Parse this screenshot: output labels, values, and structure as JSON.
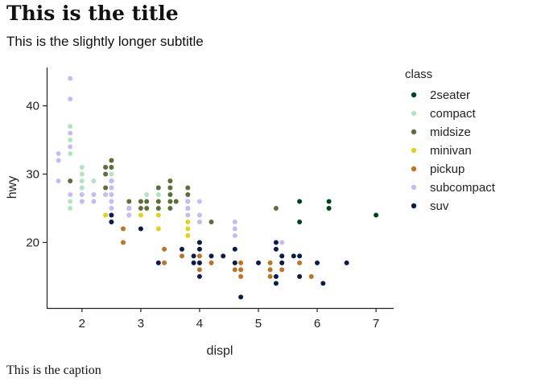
{
  "chart_data": {
    "type": "scatter",
    "title": "This is the title",
    "subtitle": "This is the slightly longer subtitle",
    "caption": "This is the caption",
    "xlabel": "displ",
    "ylabel": "hwy",
    "xlim": [
      1.4,
      7.3
    ],
    "ylim": [
      10.4,
      45.6
    ],
    "xticks": [
      2,
      3,
      4,
      5,
      6,
      7
    ],
    "yticks": [
      20,
      30,
      40
    ],
    "grid": false,
    "legend_title": "class",
    "legend_position": "right",
    "series": [
      {
        "name": "2seater",
        "color": "#00441b",
        "points": [
          [
            5.7,
            26
          ],
          [
            5.7,
            23
          ],
          [
            6.2,
            26
          ],
          [
            6.2,
            25
          ],
          [
            7.0,
            24
          ]
        ]
      },
      {
        "name": "compact",
        "color": "#b2e4c4",
        "points": [
          [
            1.8,
            37
          ],
          [
            1.8,
            35
          ],
          [
            1.8,
            33
          ],
          [
            1.8,
            29
          ],
          [
            1.8,
            26
          ],
          [
            1.8,
            25
          ],
          [
            2.0,
            31
          ],
          [
            2.0,
            30
          ],
          [
            2.0,
            29
          ],
          [
            2.0,
            28
          ],
          [
            2.0,
            26
          ],
          [
            2.2,
            29
          ],
          [
            2.2,
            27
          ],
          [
            2.2,
            26
          ],
          [
            2.4,
            31
          ],
          [
            2.4,
            30
          ],
          [
            2.4,
            27
          ],
          [
            2.5,
            30
          ],
          [
            2.5,
            28
          ],
          [
            2.5,
            27
          ],
          [
            2.5,
            26
          ],
          [
            2.5,
            25
          ],
          [
            2.8,
            26
          ],
          [
            2.8,
            25
          ],
          [
            2.8,
            24
          ],
          [
            3.0,
            26
          ],
          [
            3.1,
            27
          ],
          [
            3.3,
            27
          ]
        ]
      },
      {
        "name": "midsize",
        "color": "#5e6e3a",
        "points": [
          [
            1.8,
            29
          ],
          [
            2.4,
            31
          ],
          [
            2.4,
            30
          ],
          [
            2.4,
            28
          ],
          [
            2.5,
            32
          ],
          [
            2.5,
            31
          ],
          [
            2.5,
            29
          ],
          [
            2.8,
            26
          ],
          [
            2.8,
            25
          ],
          [
            3.0,
            26
          ],
          [
            3.0,
            25
          ],
          [
            3.1,
            26
          ],
          [
            3.1,
            25
          ],
          [
            3.3,
            28
          ],
          [
            3.3,
            26
          ],
          [
            3.3,
            25
          ],
          [
            3.5,
            29
          ],
          [
            3.5,
            28
          ],
          [
            3.5,
            27
          ],
          [
            3.5,
            26
          ],
          [
            3.5,
            25
          ],
          [
            3.6,
            26
          ],
          [
            3.8,
            28
          ],
          [
            3.8,
            27
          ],
          [
            3.8,
            26
          ],
          [
            3.8,
            25
          ],
          [
            4.2,
            23
          ],
          [
            5.3,
            25
          ]
        ]
      },
      {
        "name": "minivan",
        "color": "#e0d21e",
        "points": [
          [
            2.4,
            24
          ],
          [
            3.0,
            24
          ],
          [
            3.3,
            24
          ],
          [
            3.3,
            22
          ],
          [
            3.8,
            23
          ],
          [
            3.8,
            22
          ],
          [
            3.8,
            21
          ],
          [
            4.0,
            23
          ]
        ]
      },
      {
        "name": "pickup",
        "color": "#bd7424",
        "points": [
          [
            2.7,
            22
          ],
          [
            2.7,
            20
          ],
          [
            3.4,
            19
          ],
          [
            3.4,
            17
          ],
          [
            3.7,
            18
          ],
          [
            4.0,
            20
          ],
          [
            4.0,
            18
          ],
          [
            4.0,
            17
          ],
          [
            4.0,
            16
          ],
          [
            4.2,
            17
          ],
          [
            4.6,
            17
          ],
          [
            4.6,
            16
          ],
          [
            4.7,
            17
          ],
          [
            4.7,
            16
          ],
          [
            4.7,
            15
          ],
          [
            5.2,
            17
          ],
          [
            5.2,
            16
          ],
          [
            5.2,
            15
          ],
          [
            5.4,
            18
          ],
          [
            5.4,
            17
          ],
          [
            5.4,
            16
          ],
          [
            5.7,
            17
          ],
          [
            5.9,
            15
          ]
        ]
      },
      {
        "name": "subcompact",
        "color": "#c4bdf5",
        "points": [
          [
            1.6,
            33
          ],
          [
            1.6,
            32
          ],
          [
            1.6,
            29
          ],
          [
            1.8,
            44
          ],
          [
            1.8,
            41
          ],
          [
            1.8,
            36
          ],
          [
            1.8,
            34
          ],
          [
            1.8,
            27
          ],
          [
            2.0,
            26
          ],
          [
            2.0,
            27
          ],
          [
            2.2,
            27
          ],
          [
            2.2,
            26
          ],
          [
            2.4,
            27
          ],
          [
            2.5,
            29
          ],
          [
            2.5,
            28
          ],
          [
            2.5,
            27
          ],
          [
            2.5,
            26
          ],
          [
            2.5,
            25
          ],
          [
            2.5,
            24
          ],
          [
            2.5,
            23
          ],
          [
            2.8,
            25
          ],
          [
            2.8,
            24
          ],
          [
            3.8,
            26
          ],
          [
            3.8,
            25
          ],
          [
            3.8,
            24
          ],
          [
            4.0,
            26
          ],
          [
            4.0,
            24
          ],
          [
            4.0,
            23
          ],
          [
            4.6,
            23
          ],
          [
            4.6,
            22
          ],
          [
            4.6,
            21
          ],
          [
            5.4,
            20
          ]
        ]
      },
      {
        "name": "suv",
        "color": "#0d1a4a",
        "points": [
          [
            2.5,
            23
          ],
          [
            2.5,
            24
          ],
          [
            3.0,
            22
          ],
          [
            3.3,
            17
          ],
          [
            3.7,
            19
          ],
          [
            3.9,
            17
          ],
          [
            3.9,
            18
          ],
          [
            4.0,
            20
          ],
          [
            4.0,
            19
          ],
          [
            4.0,
            17
          ],
          [
            4.0,
            15
          ],
          [
            4.2,
            18
          ],
          [
            4.4,
            18
          ],
          [
            4.6,
            19
          ],
          [
            4.6,
            17
          ],
          [
            4.7,
            12
          ],
          [
            5.0,
            17
          ],
          [
            5.3,
            20
          ],
          [
            5.3,
            19
          ],
          [
            5.3,
            15
          ],
          [
            5.3,
            14
          ],
          [
            5.4,
            17
          ],
          [
            5.4,
            18
          ],
          [
            5.6,
            18
          ],
          [
            5.7,
            18
          ],
          [
            5.7,
            15
          ],
          [
            6.0,
            17
          ],
          [
            6.1,
            14
          ],
          [
            6.5,
            17
          ]
        ]
      }
    ]
  }
}
